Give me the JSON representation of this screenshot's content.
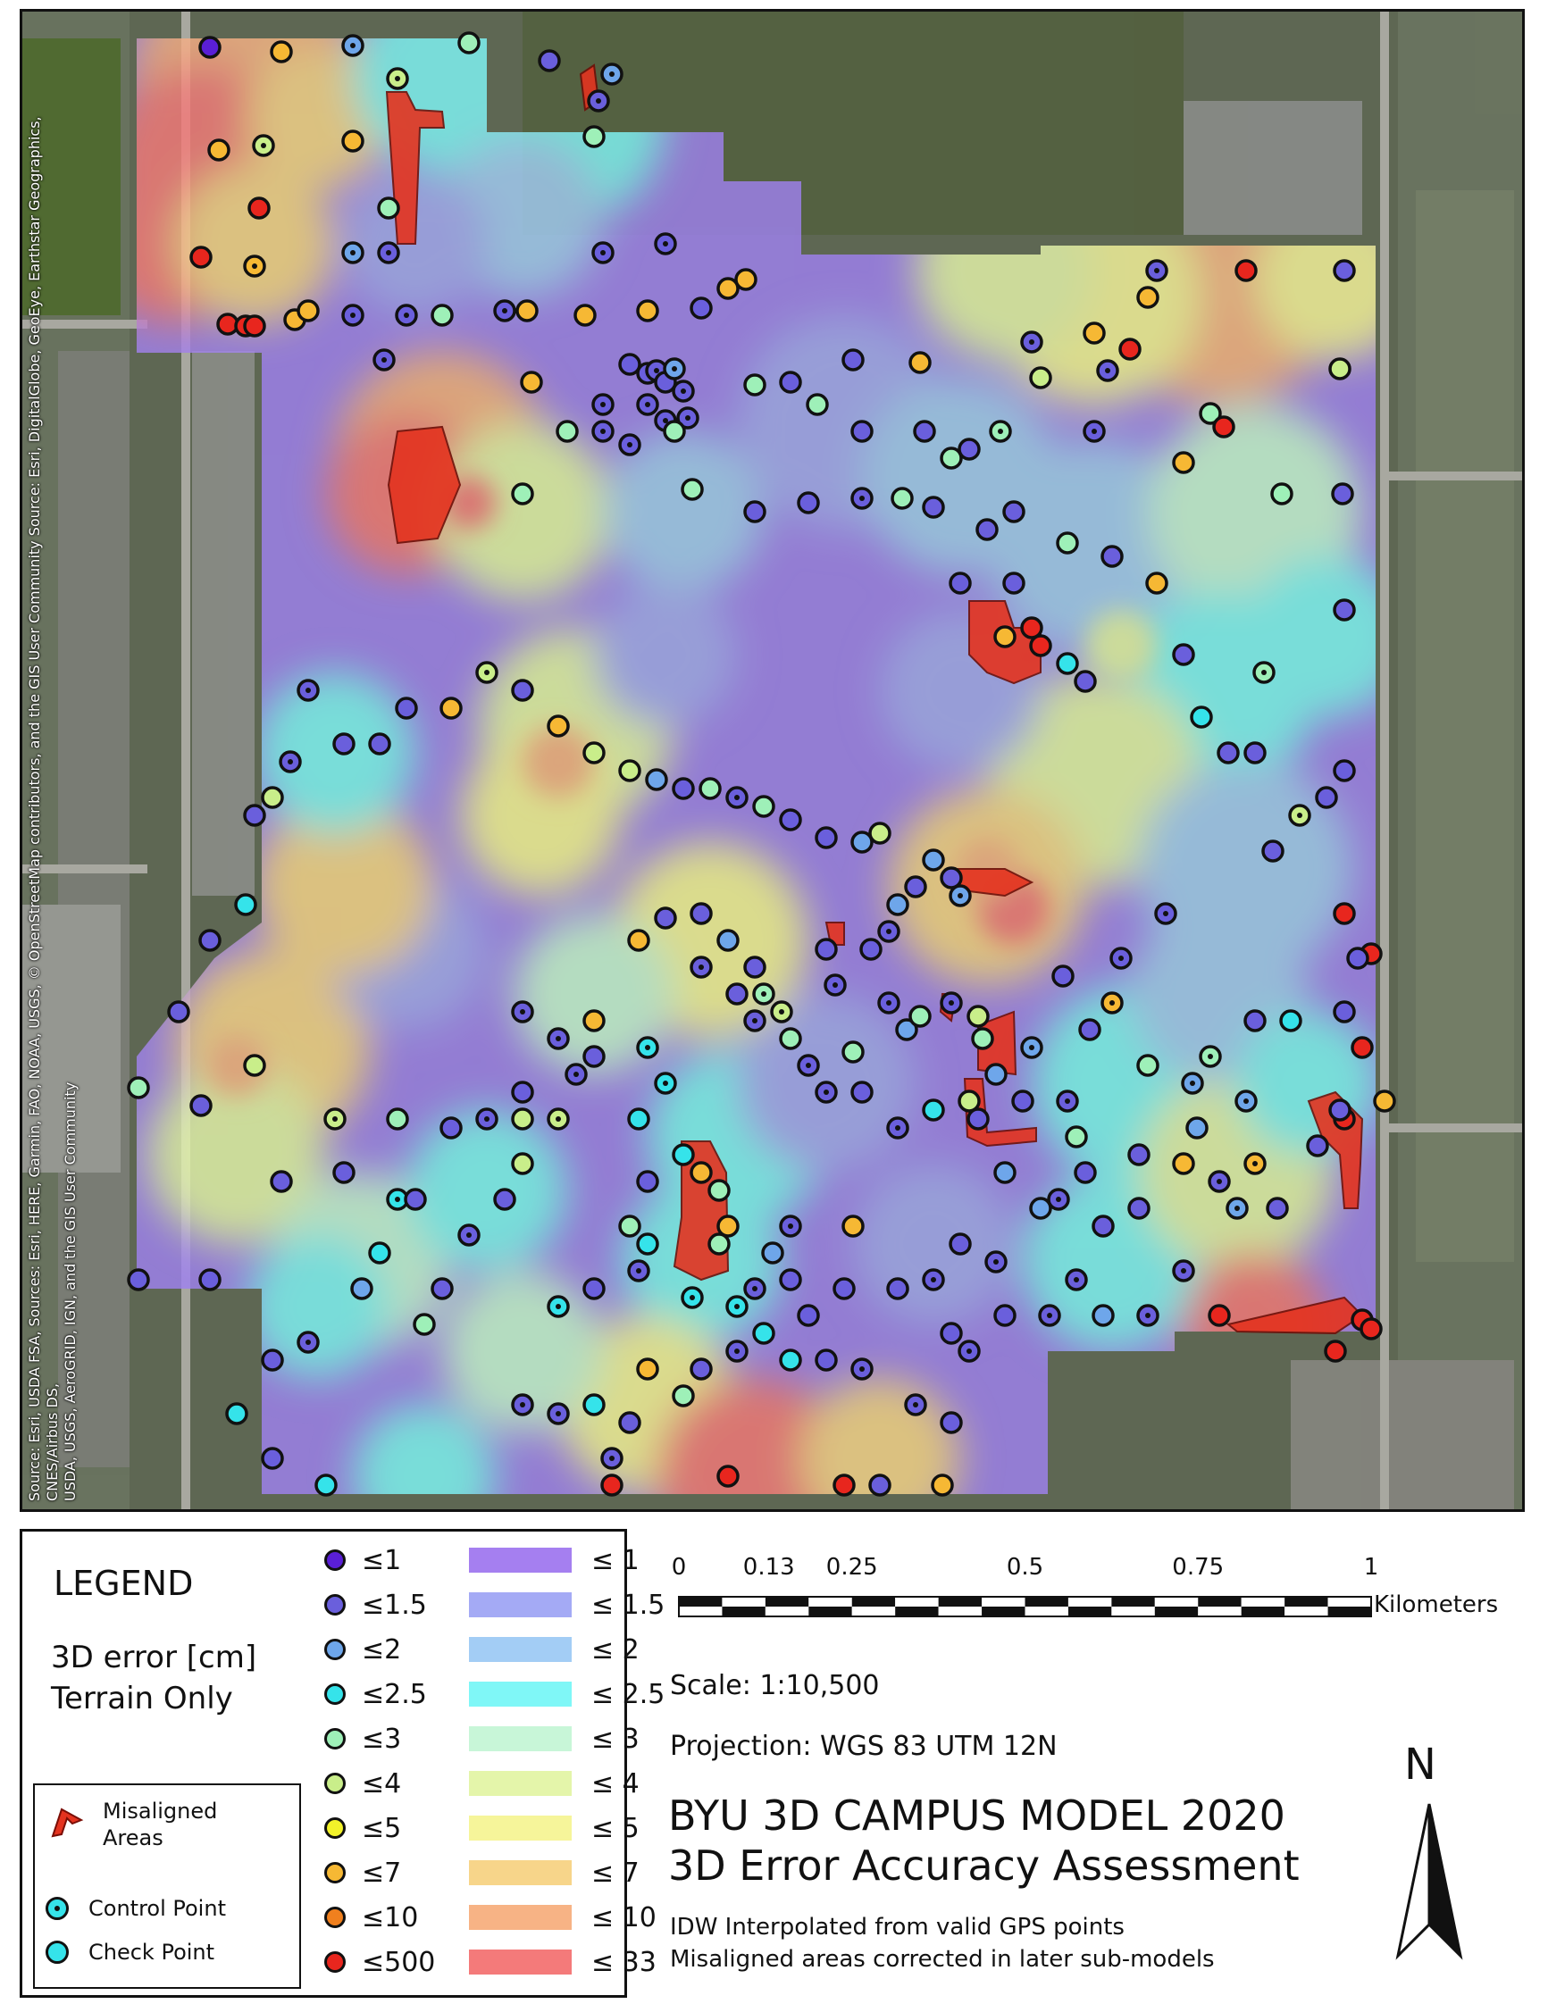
{
  "attribution": [
    "Source: Esri, USDA FSA, Sources: Esri, HERE, Garmin, FAO, NOAA, USGS, © OpenStreetMap contributors, and the GIS User Community   Source: Esri, DigitalGlobe, GeoEye, Earthstar Geographics, CNES/Airbus DS,",
    "USDA, USGS, AeroGRID, IGN, and the GIS User Community"
  ],
  "legend": {
    "title": "LEGEND",
    "subtitle_line1": "3D error [cm]",
    "subtitle_line2": "Terrain Only",
    "point_classes": [
      {
        "label": "≤1",
        "color": "#5a1fd6"
      },
      {
        "label": "≤1.5",
        "color": "#6a5fdc"
      },
      {
        "label": "≤2",
        "color": "#6ea6ea"
      },
      {
        "label": "≤2.5",
        "color": "#35e3ea"
      },
      {
        "label": "≤3",
        "color": "#9ef0b8"
      },
      {
        "label": "≤4",
        "color": "#c9ee8a"
      },
      {
        "label": "≤5",
        "color": "#f2f22a"
      },
      {
        "label": "≤7",
        "color": "#f6b834"
      },
      {
        "label": "≤10",
        "color": "#f0801e"
      },
      {
        "label": "≤500",
        "color": "#e8261e"
      }
    ],
    "surface_classes": [
      {
        "label": "≤ 1",
        "color": "#a57ff0"
      },
      {
        "label": "≤ 1.5",
        "color": "#a4aaf5"
      },
      {
        "label": "≤ 2",
        "color": "#a3cdf5"
      },
      {
        "label": "≤ 2.5",
        "color": "#7ff7f7"
      },
      {
        "label": "≤ 3",
        "color": "#c8f6d8"
      },
      {
        "label": "≤ 4",
        "color": "#e4f5aa"
      },
      {
        "label": "≤ 5",
        "color": "#f6f59a"
      },
      {
        "label": "≤ 7",
        "color": "#f7d58a"
      },
      {
        "label": "≤ 10",
        "color": "#f7b385"
      },
      {
        "label": "≤ 33",
        "color": "#f47a7a"
      }
    ],
    "symbols": {
      "misaligned_line1": "Misaligned",
      "misaligned_line2": "Areas",
      "control_point": "Control Point",
      "check_point": "Check Point"
    }
  },
  "scale_bar": {
    "ticks": [
      "0",
      "0.13",
      "0.25",
      "0.5",
      "0.75",
      "1"
    ],
    "units": "Kilometers"
  },
  "info": {
    "scale": "Scale: 1:10,500",
    "projection": "Projection: WGS 83 UTM 12N",
    "title_line1": "BYU 3D CAMPUS MODEL 2020",
    "title_line2": "3D Error Accuracy Assessment",
    "note_line1": "IDW Interpolated from valid GPS points",
    "note_line2": "Misaligned areas corrected in later sub-models"
  },
  "north_label": "N"
}
